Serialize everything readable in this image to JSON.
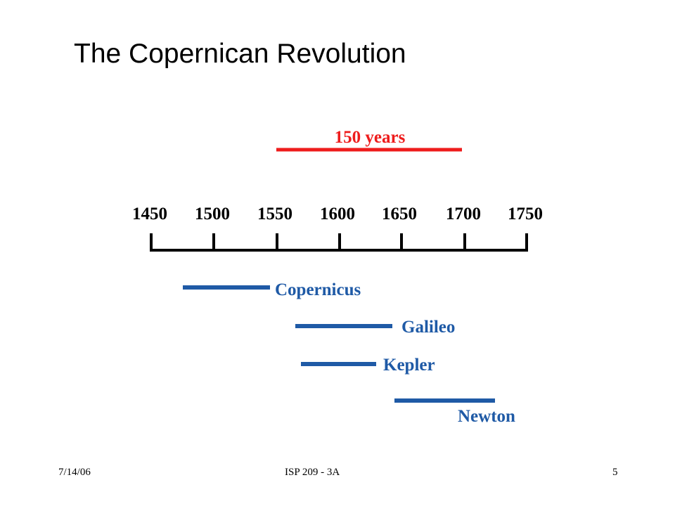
{
  "slide": {
    "title": "The Copernican Revolution"
  },
  "diagram": {
    "ticks": [
      "1450",
      "1500",
      "1550",
      "1600",
      "1650",
      "1700",
      "1750"
    ],
    "span": {
      "label": "150 years",
      "color": "#ee1c1c"
    },
    "people_color": "#1f5aa6",
    "people": [
      {
        "label": "Copernicus"
      },
      {
        "label": "Galileo"
      },
      {
        "label": "Kepler"
      },
      {
        "label": "Newton"
      }
    ]
  },
  "footer": {
    "date": "7/14/06",
    "course": "ISP 209 - 3A",
    "page": "5"
  }
}
